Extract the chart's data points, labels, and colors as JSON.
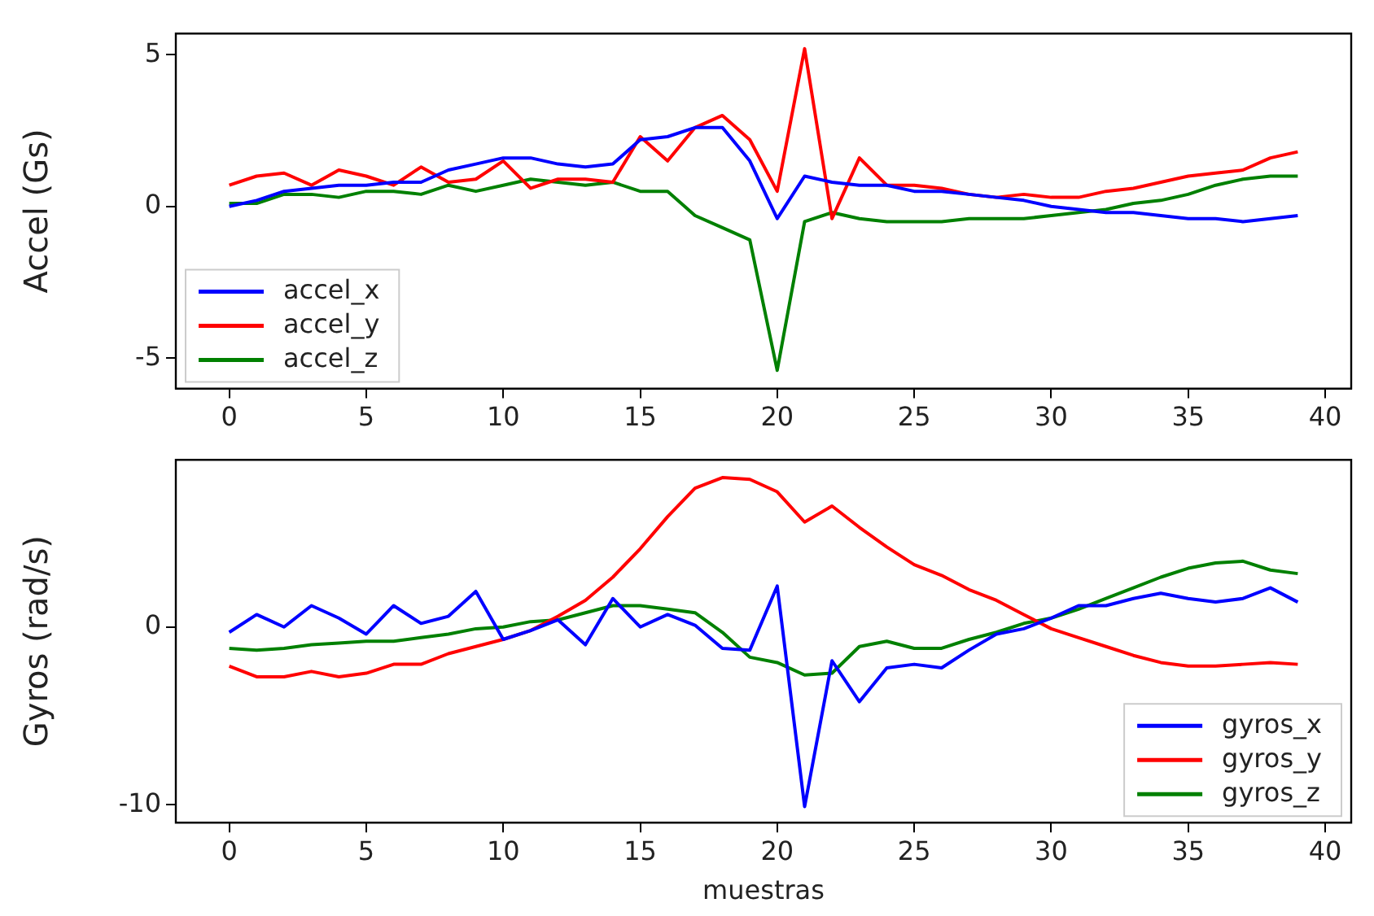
{
  "chart_data": [
    {
      "type": "line",
      "ylabel": "Accel (Gs)",
      "x": [
        0,
        1,
        2,
        3,
        4,
        5,
        6,
        7,
        8,
        9,
        10,
        11,
        12,
        13,
        14,
        15,
        16,
        17,
        18,
        19,
        20,
        21,
        22,
        23,
        24,
        25,
        26,
        27,
        28,
        29,
        30,
        31,
        32,
        33,
        34,
        35,
        36,
        37,
        38,
        39
      ],
      "xlim": [
        -1.95,
        40.95
      ],
      "xticks": [
        0,
        5,
        10,
        15,
        20,
        25,
        30,
        35,
        40
      ],
      "ylim": [
        -6,
        5.7
      ],
      "yticks": [
        -5,
        0,
        5
      ],
      "grid": false,
      "legend": "bottom left",
      "marker": "none",
      "line_style": "solid",
      "series": [
        {
          "name": "accel_x",
          "color": "#0000ff",
          "values": [
            0.0,
            0.2,
            0.5,
            0.6,
            0.7,
            0.7,
            0.8,
            0.8,
            1.2,
            1.4,
            1.6,
            1.6,
            1.4,
            1.3,
            1.4,
            2.2,
            2.3,
            2.6,
            2.6,
            1.5,
            -0.4,
            1.0,
            0.8,
            0.7,
            0.7,
            0.5,
            0.5,
            0.4,
            0.3,
            0.2,
            0.0,
            -0.1,
            -0.2,
            -0.2,
            -0.3,
            -0.4,
            -0.4,
            -0.5,
            -0.4,
            -0.3
          ]
        },
        {
          "name": "accel_y",
          "color": "#ff0000",
          "values": [
            0.7,
            1.0,
            1.1,
            0.7,
            1.2,
            1.0,
            0.7,
            1.3,
            0.8,
            0.9,
            1.5,
            0.6,
            0.9,
            0.9,
            0.8,
            2.3,
            1.5,
            2.6,
            3.0,
            2.2,
            0.5,
            5.2,
            -0.4,
            1.6,
            0.7,
            0.7,
            0.6,
            0.4,
            0.3,
            0.4,
            0.3,
            0.3,
            0.5,
            0.6,
            0.8,
            1.0,
            1.1,
            1.2,
            1.6,
            1.8
          ]
        },
        {
          "name": "accel_z",
          "color": "#008000",
          "values": [
            0.1,
            0.1,
            0.4,
            0.4,
            0.3,
            0.5,
            0.5,
            0.4,
            0.7,
            0.5,
            0.7,
            0.9,
            0.8,
            0.7,
            0.8,
            0.5,
            0.5,
            -0.3,
            -0.7,
            -1.1,
            -5.4,
            -0.5,
            -0.2,
            -0.4,
            -0.5,
            -0.5,
            -0.5,
            -0.4,
            -0.4,
            -0.4,
            -0.3,
            -0.2,
            -0.1,
            0.1,
            0.2,
            0.4,
            0.7,
            0.9,
            1.0,
            1.0
          ]
        }
      ]
    },
    {
      "type": "line",
      "xlabel": "muestras",
      "ylabel": "Gyros (rad/s)",
      "x": [
        0,
        1,
        2,
        3,
        4,
        5,
        6,
        7,
        8,
        9,
        10,
        11,
        12,
        13,
        14,
        15,
        16,
        17,
        18,
        19,
        20,
        21,
        22,
        23,
        24,
        25,
        26,
        27,
        28,
        29,
        30,
        31,
        32,
        33,
        34,
        35,
        36,
        37,
        38,
        39
      ],
      "xlim": [
        -1.95,
        40.95
      ],
      "xticks": [
        0,
        5,
        10,
        15,
        20,
        25,
        30,
        35,
        40
      ],
      "ylim": [
        -11,
        9.4
      ],
      "yticks": [
        -10,
        0
      ],
      "grid": false,
      "legend": "bottom right",
      "marker": "none",
      "line_style": "solid",
      "series": [
        {
          "name": "gyros_x",
          "color": "#0000ff",
          "values": [
            -0.3,
            0.7,
            0.0,
            1.2,
            0.5,
            -0.4,
            1.2,
            0.2,
            0.6,
            2.0,
            -0.7,
            -0.2,
            0.4,
            -1.0,
            1.6,
            0.0,
            0.7,
            0.1,
            -1.2,
            -1.3,
            2.3,
            -10.1,
            -1.9,
            -4.2,
            -2.3,
            -2.1,
            -2.3,
            -1.3,
            -0.4,
            -0.1,
            0.5,
            1.2,
            1.2,
            1.6,
            1.9,
            1.6,
            1.4,
            1.6,
            2.2,
            1.4
          ]
        },
        {
          "name": "gyros_y",
          "color": "#ff0000",
          "values": [
            -2.2,
            -2.8,
            -2.8,
            -2.5,
            -2.8,
            -2.6,
            -2.1,
            -2.1,
            -1.5,
            -1.1,
            -0.7,
            -0.2,
            0.6,
            1.5,
            2.8,
            4.4,
            6.2,
            7.8,
            8.4,
            8.3,
            7.6,
            5.9,
            6.8,
            5.6,
            4.5,
            3.5,
            2.9,
            2.1,
            1.5,
            0.7,
            -0.1,
            -0.6,
            -1.1,
            -1.6,
            -2.0,
            -2.2,
            -2.2,
            -2.1,
            -2.0,
            -2.1
          ]
        },
        {
          "name": "gyros_z",
          "color": "#008000",
          "values": [
            -1.2,
            -1.3,
            -1.2,
            -1.0,
            -0.9,
            -0.8,
            -0.8,
            -0.6,
            -0.4,
            -0.1,
            0.0,
            0.3,
            0.4,
            0.8,
            1.2,
            1.2,
            1.0,
            0.8,
            -0.3,
            -1.7,
            -2.0,
            -2.7,
            -2.6,
            -1.1,
            -0.8,
            -1.2,
            -1.2,
            -0.7,
            -0.3,
            0.2,
            0.5,
            1.0,
            1.6,
            2.2,
            2.8,
            3.3,
            3.6,
            3.7,
            3.2,
            3.0
          ]
        }
      ]
    }
  ]
}
